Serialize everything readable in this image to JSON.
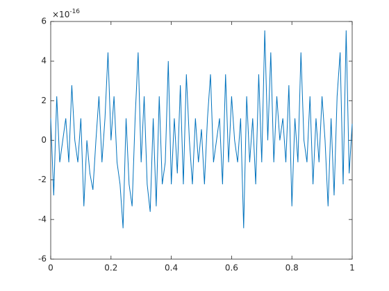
{
  "chart_data": {
    "type": "line",
    "y_exponent": {
      "base": "×10",
      "power": "-16"
    },
    "x": [
      0,
      0.01,
      0.02,
      0.03,
      0.04,
      0.05,
      0.06,
      0.07,
      0.08,
      0.09,
      0.1,
      0.11,
      0.12,
      0.13,
      0.14,
      0.15,
      0.16,
      0.17,
      0.18,
      0.19,
      0.2,
      0.21,
      0.22,
      0.23,
      0.24,
      0.25,
      0.26,
      0.27,
      0.28,
      0.29,
      0.3,
      0.31,
      0.32,
      0.33,
      0.34,
      0.35,
      0.36,
      0.37,
      0.38,
      0.39,
      0.4,
      0.41,
      0.42,
      0.43,
      0.44,
      0.45,
      0.46,
      0.47,
      0.48,
      0.49,
      0.5,
      0.51,
      0.52,
      0.53,
      0.54,
      0.55,
      0.56,
      0.57,
      0.58,
      0.59,
      0.6,
      0.61,
      0.62,
      0.63,
      0.64,
      0.65,
      0.66,
      0.67,
      0.68,
      0.69,
      0.7,
      0.71,
      0.72,
      0.73,
      0.74,
      0.75,
      0.76,
      0.77,
      0.78,
      0.79,
      0.8,
      0.81,
      0.82,
      0.83,
      0.84,
      0.85,
      0.86,
      0.87,
      0.88,
      0.89,
      0.9,
      0.91,
      0.92,
      0.93,
      0.94,
      0.95,
      0.96,
      0.97,
      0.98,
      0.99,
      1
    ],
    "series": [
      {
        "color": "#0072bd",
        "values": [
          1.11,
          -2.78,
          2.22,
          -1.11,
          0,
          1.11,
          -1.11,
          2.78,
          0,
          -1.11,
          1.11,
          -3.33,
          0,
          -1.67,
          -2.5,
          0,
          2.22,
          -1.11,
          1.11,
          4.44,
          0,
          2.22,
          -1.11,
          -2.22,
          -4.44,
          1.11,
          -2.22,
          -3.33,
          1.11,
          4.44,
          -1.11,
          2.22,
          -2.22,
          -3.61,
          1.11,
          -3.33,
          2.22,
          -2.22,
          -1.11,
          4.0,
          -2.22,
          1.11,
          -1.67,
          2.78,
          -2.22,
          3.33,
          0,
          -2.22,
          1.11,
          -1.11,
          0.56,
          -2.22,
          1.11,
          3.33,
          -1.11,
          0,
          1.11,
          -2.22,
          3.33,
          -1.11,
          2.22,
          0,
          -1.11,
          1.11,
          -4.44,
          2.22,
          -1.11,
          1.11,
          -2.22,
          3.33,
          -1.11,
          5.55,
          0,
          4.44,
          -1.11,
          2.22,
          0,
          1.11,
          -1.11,
          2.78,
          -3.33,
          1.11,
          -1.11,
          4.44,
          0,
          -1.11,
          2.22,
          -2.22,
          1.11,
          -1.11,
          2.22,
          0,
          -3.33,
          1.11,
          -2.78,
          2.22,
          4.44,
          -2.22,
          5.55,
          -1.67,
          0.83
        ]
      }
    ],
    "xlim": [
      0,
      1
    ],
    "xticks": [
      0,
      0.2,
      0.4,
      0.6,
      0.8,
      1
    ],
    "ylim": [
      -6,
      6
    ],
    "yticks": [
      -6,
      -4,
      -2,
      0,
      2,
      4,
      6
    ]
  }
}
